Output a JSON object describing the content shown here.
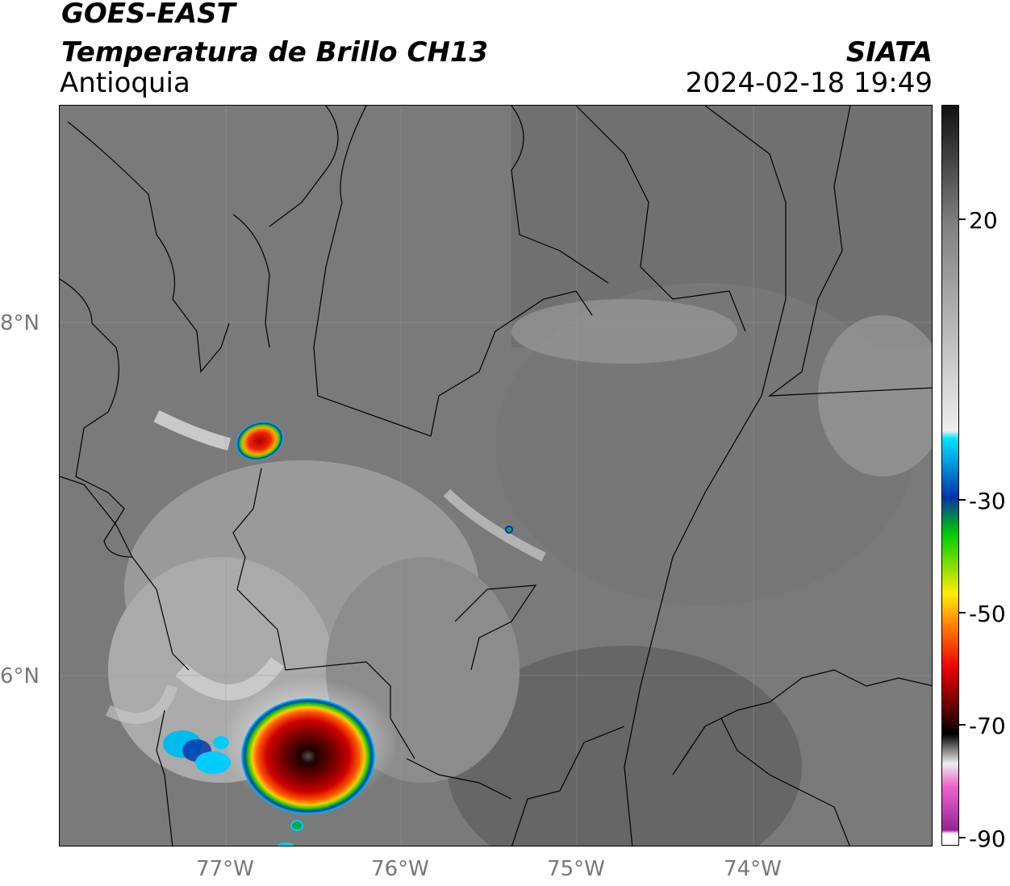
{
  "header": {
    "satellite": "GOES-EAST",
    "product": "Temperatura de Brillo CH13",
    "region": "Antioquia",
    "org": "SIATA",
    "datetime": "2024-02-18 19:49"
  },
  "axes": {
    "lat_labels": [
      "8°N",
      "6°N"
    ],
    "lon_labels": [
      "77°W",
      "76°W",
      "75°W",
      "74°W"
    ]
  },
  "colorbar": {
    "tick_labels": [
      "20",
      "-30",
      "-50",
      "-70",
      "-90"
    ],
    "colors": {
      "warm_dark": "#111111",
      "gray_mid": "#808080",
      "gray_light": "#eeeeee",
      "cyan": "#00e5ff",
      "blue": "#0033aa",
      "green": "#00cc00",
      "yellow": "#ffee00",
      "orange": "#ff8800",
      "red": "#ee0000",
      "darkred": "#550000",
      "black": "#000000",
      "pink": "#ee66cc",
      "purple": "#992299"
    }
  },
  "map": {
    "features": [
      "convective-cell-north",
      "convective-cell-south",
      "convective-cell-west",
      "small-cell-center",
      "small-cell-south"
    ]
  }
}
